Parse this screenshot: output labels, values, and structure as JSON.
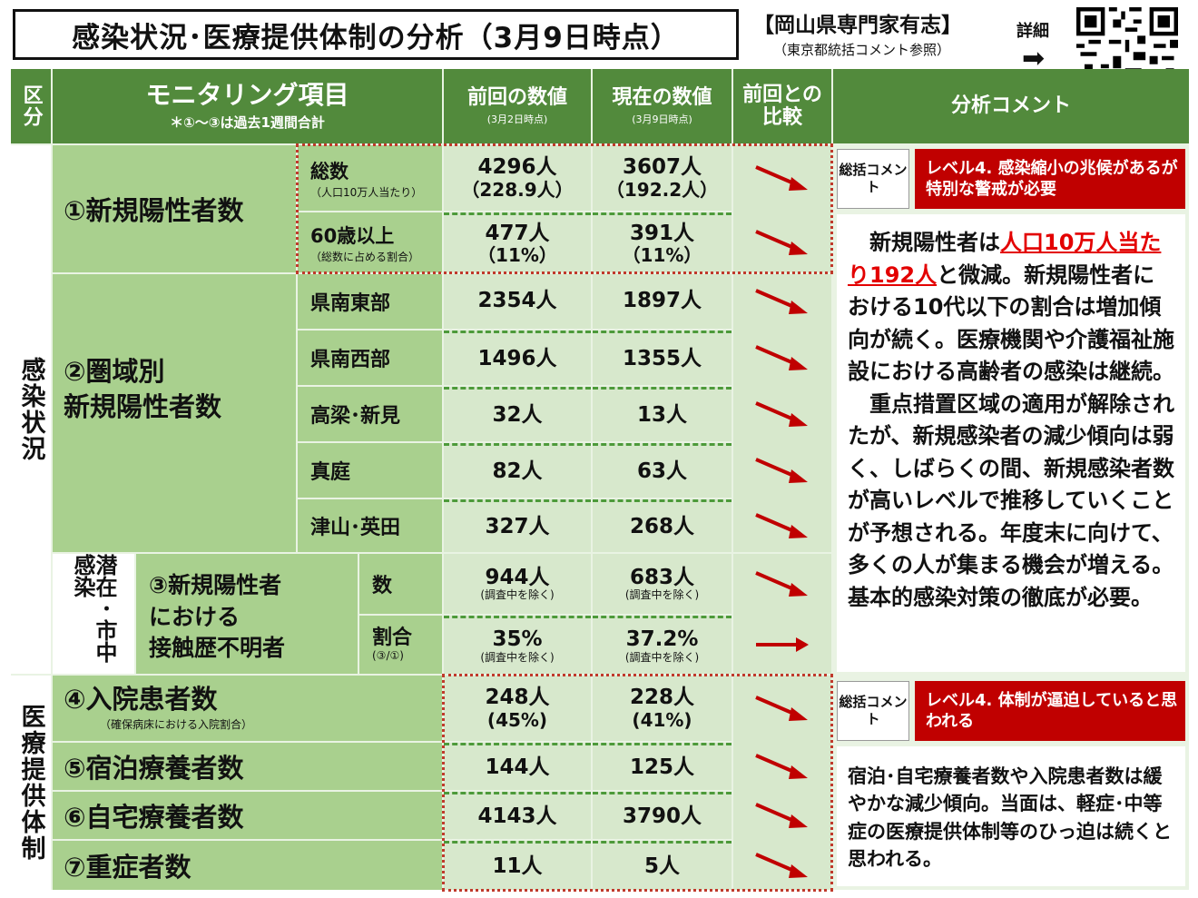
{
  "title": "感染状況･医療提供体制の分析（3月9日時点）",
  "expert": {
    "name": "【岡山県専門家有志】",
    "note": "（東京都統括コメント参照）",
    "detail": "詳細",
    "arrow": "➡"
  },
  "header": {
    "kubun": "区分",
    "monitoring": "モニタリング項目",
    "monitoring_note": "＊①～③は過去1週間合計",
    "prev": "前回の数値",
    "prev_date": "(3月2日時点)",
    "curr": "現在の数値",
    "curr_date": "(3月9日時点)",
    "compare": "前回との比較",
    "analysis": "分析コメント"
  },
  "section_infection": "感染状況",
  "section_medical": "医療提供体制",
  "hidden_label": "潜在･市中感染",
  "colors": {
    "header": "#528a3c",
    "green": "#a9d08e",
    "light": "#d7e8cc",
    "red": "#c00000",
    "arrow": "#c00000"
  },
  "rows": {
    "r1": {
      "label": "①新規陽性者数"
    },
    "r1a": {
      "label": "総数",
      "note": "（人口10万人当たり）",
      "prev": "4296人",
      "prev2": "（228.9人）",
      "curr": "3607人",
      "curr2": "（192.2人）",
      "trend": "down"
    },
    "r1b": {
      "label": "60歳以上",
      "note": "（総数に占める割合）",
      "prev": "477人",
      "prev2": "（11%）",
      "curr": "391人",
      "curr2": "（11%）",
      "trend": "down"
    },
    "r2": {
      "label1": "②圏域別",
      "label2": "新規陽性者数"
    },
    "r2a": {
      "label": "県南東部",
      "prev": "2354人",
      "curr": "1897人",
      "trend": "down"
    },
    "r2b": {
      "label": "県南西部",
      "prev": "1496人",
      "curr": "1355人",
      "trend": "down"
    },
    "r2c": {
      "label": "高梁･新見",
      "prev": "32人",
      "curr": "13人",
      "trend": "down"
    },
    "r2d": {
      "label": "真庭",
      "prev": "82人",
      "curr": "63人",
      "trend": "down"
    },
    "r2e": {
      "label": "津山･英田",
      "prev": "327人",
      "curr": "268人",
      "trend": "down"
    },
    "r3": {
      "label1": "③新規陽性者",
      "label2": "における",
      "label3": "接触歴不明者"
    },
    "r3a": {
      "label": "数",
      "prev": "944人",
      "prev_note": "(調査中を除く)",
      "curr": "683人",
      "curr_note": "(調査中を除く)",
      "trend": "down"
    },
    "r3b": {
      "label": "割合",
      "note": "(③/①)",
      "prev": "35%",
      "prev_note": "(調査中を除く)",
      "curr": "37.2%",
      "curr_note": "(調査中を除く)",
      "trend": "flat"
    },
    "r4": {
      "label": "④入院患者数",
      "note": "（確保病床における入院割合）",
      "prev": "248人",
      "prev2": "(45%)",
      "curr": "228人",
      "curr2": "(41%)",
      "trend": "down"
    },
    "r5": {
      "label": "⑤宿泊療養者数",
      "prev": "144人",
      "curr": "125人",
      "trend": "down"
    },
    "r6": {
      "label": "⑥自宅療養者数",
      "prev": "4143人",
      "curr": "3790人",
      "trend": "down"
    },
    "r7": {
      "label": "⑦重症者数",
      "prev": "11人",
      "curr": "5人",
      "trend": "down"
    }
  },
  "summary_label": "総括コメント",
  "level_infection": "レベル4. 感染縮小の兆候があるが特別な警戒が必要",
  "level_medical": "レベル4. 体制が逼迫していると思われる",
  "comment_infection": {
    "p1_pre": "新規陽性者は",
    "p1_hl": "人口10万人当たり192人",
    "p1_post": "と微減。新規陽性者における10代以下の割合は増加傾向が続く。医療機関や介護福祉施設における高齢者の感染は継続。",
    "p2": "重点措置区域の適用が解除されたが、新規感染者の減少傾向は弱く、しばらくの間、新規感染者数が高いレベルで推移していくことが予想される。年度末に向けて、多くの人が集まる機会が増える。基本的感染対策の徹底が必要。"
  },
  "comment_medical": "宿泊･自宅療養者数や入院患者数は緩やかな減少傾向。当面は、軽症･中等症の医療提供体制等のひっ迫は続くと思われる。"
}
